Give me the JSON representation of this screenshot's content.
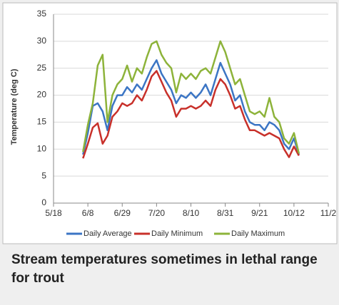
{
  "chart_data": {
    "type": "line",
    "y_label": "Temperature (deg C)",
    "x": [
      "6/5",
      "6/8",
      "6/11",
      "6/14",
      "6/17",
      "6/20",
      "6/23",
      "6/26",
      "6/29",
      "7/2",
      "7/5",
      "7/8",
      "7/11",
      "7/14",
      "7/17",
      "7/20",
      "7/23",
      "7/26",
      "7/29",
      "8/1",
      "8/4",
      "8/7",
      "8/10",
      "8/13",
      "8/16",
      "8/19",
      "8/22",
      "8/25",
      "8/28",
      "8/31",
      "9/3",
      "9/6",
      "9/9",
      "9/12",
      "9/15",
      "9/18",
      "9/21",
      "9/24",
      "9/27",
      "9/30",
      "10/3",
      "10/6",
      "10/9",
      "10/12",
      "10/15"
    ],
    "series": [
      {
        "name": "Daily Average",
        "color": "#3b75c4",
        "values": [
          9,
          13,
          18,
          18.5,
          17,
          13.5,
          18,
          20,
          20,
          21.5,
          20.5,
          22,
          21,
          23,
          25,
          26.5,
          24,
          22.5,
          21,
          18.5,
          20,
          19.5,
          20.5,
          19.5,
          20.5,
          22,
          20,
          23,
          26,
          24,
          22,
          19,
          20,
          17,
          15,
          14.5,
          14.5,
          13.5,
          15,
          14.5,
          13.5,
          11,
          10,
          12,
          9
        ]
      },
      {
        "name": "Daily Minimum",
        "color": "#c8302a",
        "values": [
          8.3,
          11,
          14,
          14.8,
          11,
          12.5,
          16,
          17,
          18.5,
          18,
          18.5,
          20,
          19,
          21,
          23.5,
          24.5,
          22.5,
          20.5,
          19,
          16,
          17.5,
          17.5,
          18,
          17.5,
          18,
          19,
          18,
          21,
          23,
          22,
          20,
          17.5,
          18,
          15.5,
          13.5,
          13.5,
          13,
          12.5,
          13,
          12.5,
          12,
          10,
          8.5,
          10.5,
          8.8
        ]
      },
      {
        "name": "Daily Maximum",
        "color": "#8db33a",
        "values": [
          9.5,
          14.5,
          18.5,
          25.5,
          27.5,
          15,
          20,
          22,
          23,
          25.5,
          22.5,
          25,
          24,
          27,
          29.5,
          30,
          27.5,
          26,
          25,
          20.5,
          24,
          23,
          24,
          23,
          24.5,
          25,
          24,
          27,
          30,
          28,
          25,
          22,
          23,
          20,
          17,
          16.5,
          17,
          16,
          19.5,
          16,
          15,
          12,
          11,
          13,
          9.2
        ]
      }
    ],
    "xlim": [
      "5/18",
      "11/2"
    ],
    "xticks": [
      "5/18",
      "6/8",
      "6/29",
      "7/20",
      "8/10",
      "8/31",
      "9/21",
      "10/12",
      "11/2"
    ],
    "ylim": [
      0,
      35
    ],
    "yticks": [
      0,
      5,
      10,
      15,
      20,
      25,
      30,
      35
    ],
    "grid": true,
    "legend": "bottom"
  },
  "caption": "Stream temperatures sometimes in lethal range for trout"
}
